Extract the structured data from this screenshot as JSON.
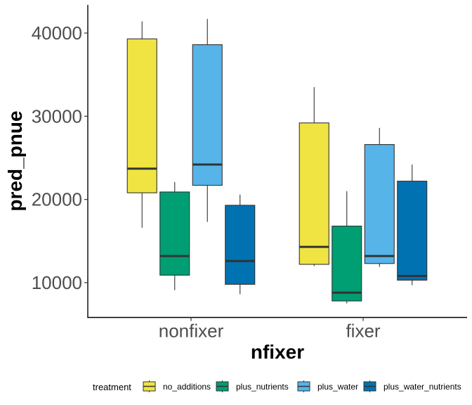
{
  "chart_data": {
    "type": "boxplot",
    "xlabel": "nfixer",
    "ylabel": "pred_pnue",
    "categories": [
      "nonfixer",
      "fixer"
    ],
    "ylim": [
      6000,
      43500
    ],
    "yticks": [
      10000,
      20000,
      30000,
      40000
    ],
    "ytick_labels": [
      "10000",
      "20000",
      "30000",
      "40000"
    ],
    "grid": false,
    "legend": {
      "title": "treatment",
      "position": "bottom",
      "entries": [
        "no_additions",
        "plus_nutrients",
        "plus_water",
        "plus_water_nutrients"
      ]
    },
    "series": [
      {
        "name": "no_additions",
        "color": "#F0E442",
        "boxes": [
          {
            "category": "nonfixer",
            "min": 16600,
            "q1": 20800,
            "median": 23700,
            "q3": 39300,
            "max": 41400
          },
          {
            "category": "fixer",
            "min": 12000,
            "q1": 12200,
            "median": 14300,
            "q3": 29200,
            "max": 33500
          }
        ]
      },
      {
        "name": "plus_nutrients",
        "color": "#009E73",
        "boxes": [
          {
            "category": "nonfixer",
            "min": 9100,
            "q1": 10900,
            "median": 13200,
            "q3": 20900,
            "max": 22100
          },
          {
            "category": "fixer",
            "min": 7500,
            "q1": 7800,
            "median": 8800,
            "q3": 16800,
            "max": 21000
          }
        ]
      },
      {
        "name": "plus_water",
        "color": "#56B4E9",
        "boxes": [
          {
            "category": "nonfixer",
            "min": 17300,
            "q1": 21700,
            "median": 24200,
            "q3": 38600,
            "max": 41700
          },
          {
            "category": "fixer",
            "min": 11900,
            "q1": 12300,
            "median": 13200,
            "q3": 26600,
            "max": 28600
          }
        ]
      },
      {
        "name": "plus_water_nutrients",
        "color": "#0072B2",
        "boxes": [
          {
            "category": "nonfixer",
            "min": 8600,
            "q1": 9800,
            "median": 12600,
            "q3": 19300,
            "max": 20600
          },
          {
            "category": "fixer",
            "min": 9700,
            "q1": 10300,
            "median": 10800,
            "q3": 22200,
            "max": 24200
          }
        ]
      }
    ]
  }
}
